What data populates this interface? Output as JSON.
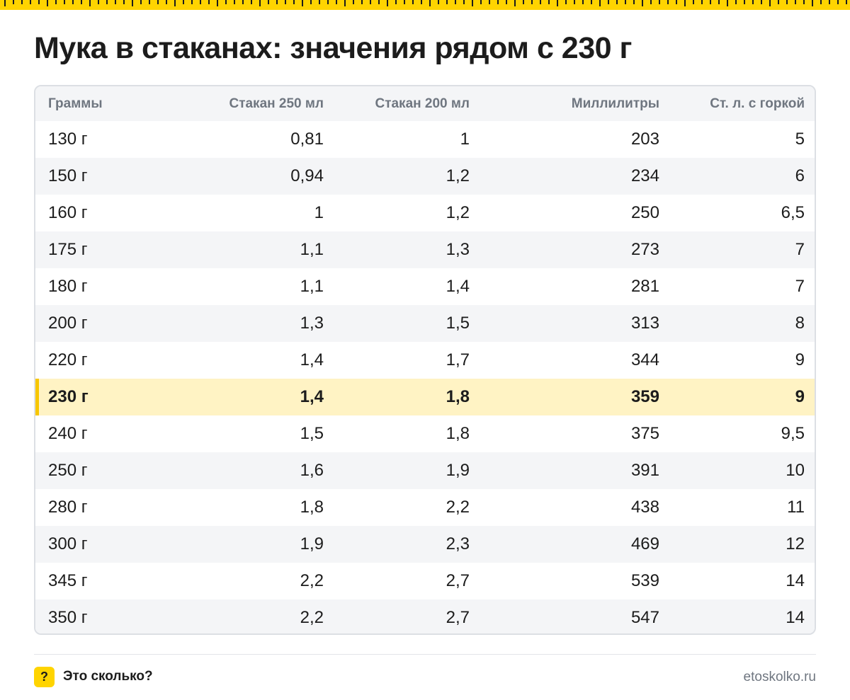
{
  "colors": {
    "accent": "#ffd400",
    "highlight_row": "#fff3c4",
    "header_bg": "#f4f5f7",
    "header_text": "#6f7680"
  },
  "title": "Мука в стаканах: значения рядом с 230 г",
  "table": {
    "headers": [
      "Граммы",
      "Стакан 250 мл",
      "Стакан 200 мл",
      "Миллилитры",
      "Ст. л. с горкой"
    ],
    "highlighted_row": 7,
    "rows": [
      [
        "130 г",
        "0,81",
        "1",
        "203",
        "5"
      ],
      [
        "150 г",
        "0,94",
        "1,2",
        "234",
        "6"
      ],
      [
        "160 г",
        "1",
        "1,2",
        "250",
        "6,5"
      ],
      [
        "175 г",
        "1,1",
        "1,3",
        "273",
        "7"
      ],
      [
        "180 г",
        "1,1",
        "1,4",
        "281",
        "7"
      ],
      [
        "200 г",
        "1,3",
        "1,5",
        "313",
        "8"
      ],
      [
        "220 г",
        "1,4",
        "1,7",
        "344",
        "9"
      ],
      [
        "230 г",
        "1,4",
        "1,8",
        "359",
        "9"
      ],
      [
        "240 г",
        "1,5",
        "1,8",
        "375",
        "9,5"
      ],
      [
        "250 г",
        "1,6",
        "1,9",
        "391",
        "10"
      ],
      [
        "280 г",
        "1,8",
        "2,2",
        "438",
        "11"
      ],
      [
        "300 г",
        "1,9",
        "2,3",
        "469",
        "12"
      ],
      [
        "345 г",
        "2,2",
        "2,7",
        "539",
        "14"
      ],
      [
        "350 г",
        "2,2",
        "2,7",
        "547",
        "14"
      ]
    ]
  },
  "footer": {
    "badge_icon": "?",
    "brand": "Это сколько?",
    "site": "etoskolko.ru"
  }
}
